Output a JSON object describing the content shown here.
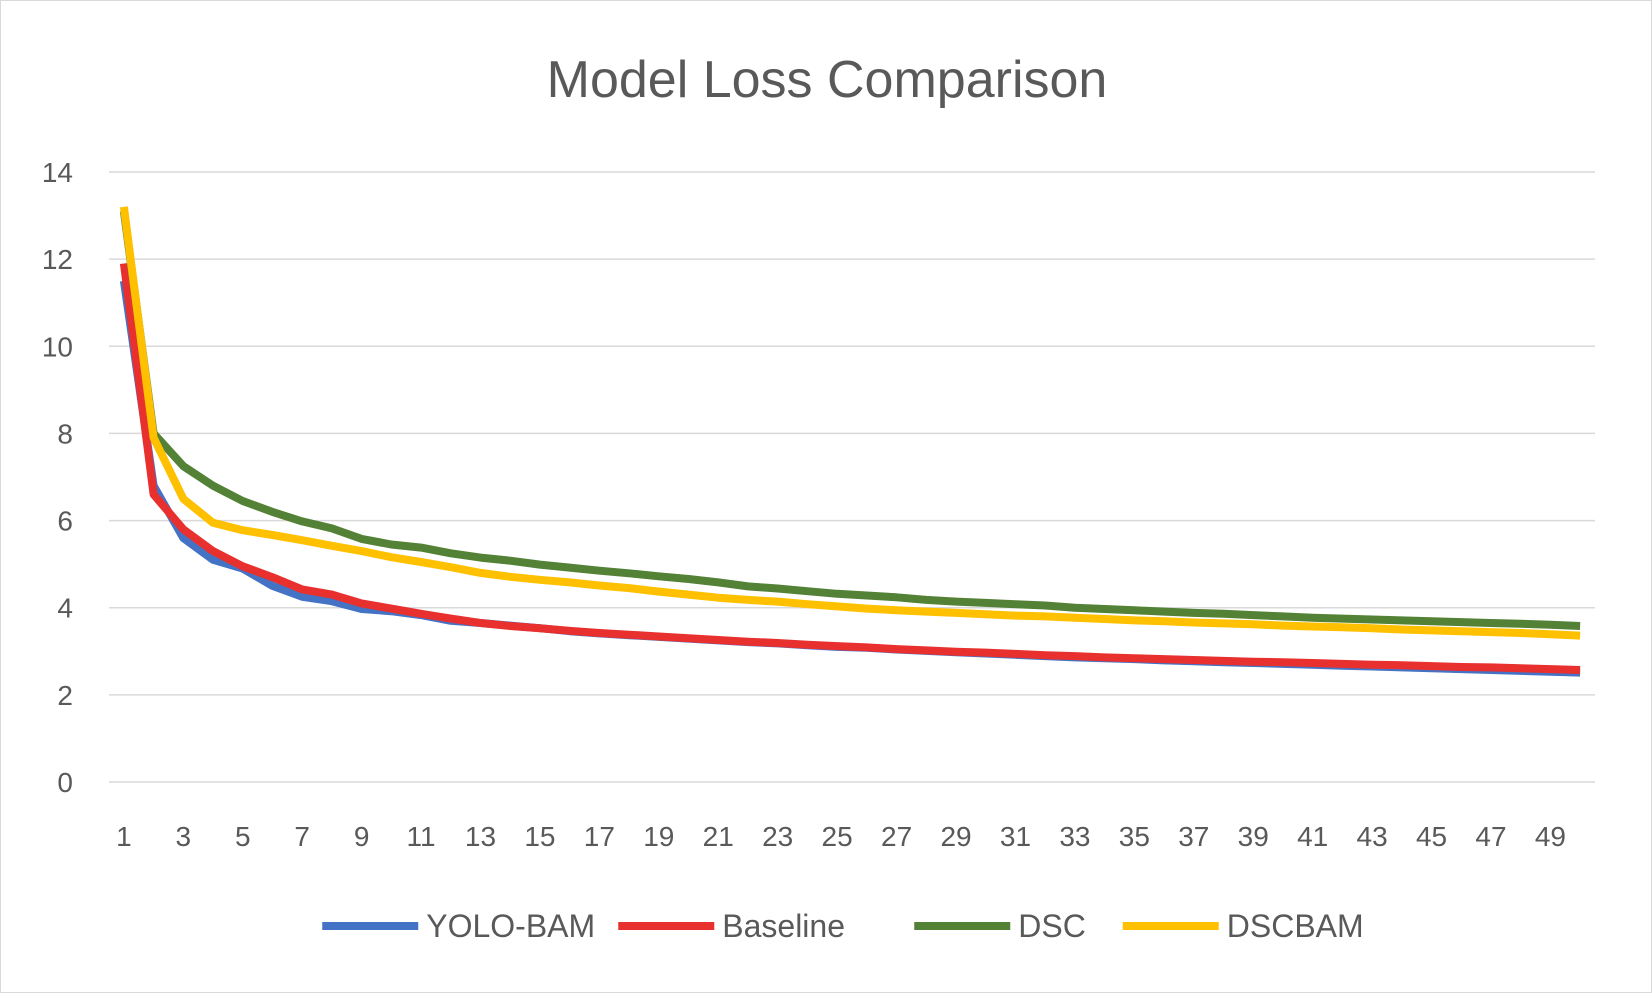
{
  "chart_data": {
    "type": "line",
    "title": "Model Loss Comparison",
    "xlabel": "",
    "ylabel": "",
    "ylim": [
      0,
      14
    ],
    "y_ticks": [
      "0",
      "2",
      "4",
      "6",
      "8",
      "10",
      "12",
      "14"
    ],
    "x": [
      1,
      2,
      3,
      4,
      5,
      6,
      7,
      8,
      9,
      10,
      11,
      12,
      13,
      14,
      15,
      16,
      17,
      18,
      19,
      20,
      21,
      22,
      23,
      24,
      25,
      26,
      27,
      28,
      29,
      30,
      31,
      32,
      33,
      34,
      35,
      36,
      37,
      38,
      39,
      40,
      41,
      42,
      43,
      44,
      45,
      46,
      47,
      48,
      49,
      50
    ],
    "x_ticks": [
      "1",
      "3",
      "5",
      "7",
      "9",
      "11",
      "13",
      "15",
      "17",
      "19",
      "21",
      "23",
      "25",
      "27",
      "29",
      "31",
      "33",
      "35",
      "37",
      "39",
      "41",
      "43",
      "45",
      "47",
      "49"
    ],
    "grid": true,
    "legend": "bottom",
    "series": [
      {
        "name": "YOLO-BAM",
        "color": "#4472c4",
        "values": [
          11.5,
          6.8,
          5.6,
          5.1,
          4.9,
          4.5,
          4.25,
          4.15,
          3.97,
          3.92,
          3.83,
          3.7,
          3.65,
          3.59,
          3.53,
          3.46,
          3.41,
          3.37,
          3.33,
          3.29,
          3.25,
          3.21,
          3.18,
          3.14,
          3.1,
          3.08,
          3.04,
          3.01,
          2.98,
          2.95,
          2.92,
          2.89,
          2.86,
          2.84,
          2.82,
          2.79,
          2.77,
          2.75,
          2.73,
          2.71,
          2.69,
          2.67,
          2.65,
          2.63,
          2.61,
          2.59,
          2.57,
          2.55,
          2.53,
          2.51
        ]
      },
      {
        "name": "Baseline",
        "color": "#e8302f",
        "values": [
          11.9,
          6.6,
          5.8,
          5.3,
          4.95,
          4.7,
          4.42,
          4.3,
          4.1,
          3.98,
          3.86,
          3.75,
          3.65,
          3.58,
          3.53,
          3.47,
          3.42,
          3.38,
          3.34,
          3.3,
          3.26,
          3.22,
          3.19,
          3.15,
          3.12,
          3.09,
          3.05,
          3.02,
          2.99,
          2.97,
          2.94,
          2.91,
          2.89,
          2.86,
          2.84,
          2.82,
          2.8,
          2.78,
          2.76,
          2.75,
          2.73,
          2.71,
          2.69,
          2.68,
          2.66,
          2.64,
          2.63,
          2.61,
          2.59,
          2.57
        ]
      },
      {
        "name": "DSC",
        "color": "#538135",
        "values": [
          13.1,
          8.0,
          7.25,
          6.8,
          6.45,
          6.2,
          5.98,
          5.82,
          5.58,
          5.45,
          5.38,
          5.25,
          5.15,
          5.08,
          4.99,
          4.92,
          4.85,
          4.79,
          4.72,
          4.66,
          4.58,
          4.49,
          4.44,
          4.38,
          4.32,
          4.28,
          4.24,
          4.18,
          4.14,
          4.11,
          4.08,
          4.05,
          4.0,
          3.97,
          3.94,
          3.91,
          3.88,
          3.86,
          3.83,
          3.8,
          3.77,
          3.75,
          3.73,
          3.71,
          3.69,
          3.67,
          3.65,
          3.63,
          3.61,
          3.58
        ]
      },
      {
        "name": "DSCBAM",
        "color": "#ffc000",
        "values": [
          13.2,
          7.9,
          6.5,
          5.95,
          5.78,
          5.67,
          5.55,
          5.42,
          5.3,
          5.16,
          5.05,
          4.93,
          4.8,
          4.71,
          4.64,
          4.58,
          4.51,
          4.45,
          4.37,
          4.3,
          4.23,
          4.18,
          4.14,
          4.08,
          4.03,
          3.98,
          3.94,
          3.91,
          3.88,
          3.85,
          3.82,
          3.8,
          3.77,
          3.74,
          3.71,
          3.69,
          3.66,
          3.64,
          3.62,
          3.59,
          3.57,
          3.55,
          3.53,
          3.5,
          3.48,
          3.46,
          3.44,
          3.42,
          3.39,
          3.36
        ]
      }
    ]
  }
}
